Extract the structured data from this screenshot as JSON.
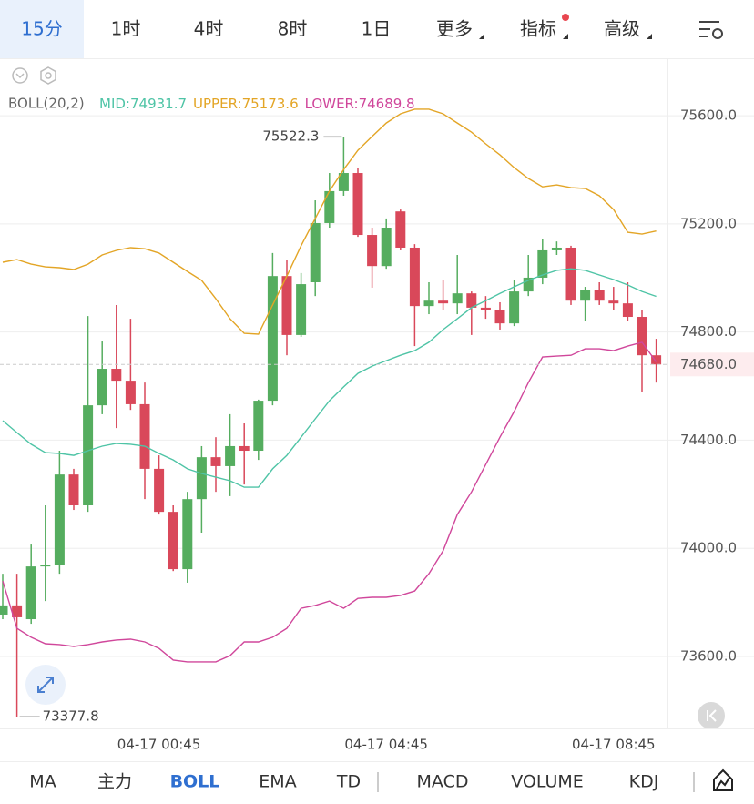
{
  "top_tabs": [
    "15分",
    "1时",
    "4时",
    "8时",
    "1日",
    "更多",
    "指标",
    "高级"
  ],
  "bottom_tabs": [
    "MA",
    "主力",
    "BOLL",
    "EMA",
    "TD",
    "MACD",
    "VOLUME",
    "KDJ"
  ],
  "chart_data": {
    "type": "candlestick",
    "indicator_label": "BOLL(20,2)",
    "categories": [
      null,
      null,
      null,
      null,
      null,
      null,
      null,
      null,
      null,
      null,
      null,
      "04-17 00:45",
      null,
      null,
      null,
      null,
      null,
      null,
      null,
      null,
      null,
      null,
      null,
      null,
      null,
      null,
      null,
      "04-17 04:45",
      null,
      null,
      null,
      null,
      null,
      null,
      null,
      null,
      null,
      null,
      null,
      null,
      null,
      null,
      null,
      "04-17 08:45",
      null,
      null,
      null
    ],
    "open": [
      73755,
      73789,
      73738,
      73933,
      73937,
      74273,
      74159,
      74529,
      74664,
      74620,
      74533,
      74294,
      74135,
      73923,
      74182,
      74337,
      74304,
      74378,
      74361,
      74546,
      75007,
      74789,
      74984,
      75203,
      75321,
      75388,
      75159,
      75044,
      75246,
      75112,
      74896,
      74916,
      74906,
      74943,
      74890,
      74883,
      74832,
      74950,
      75001,
      75102,
      75112,
      74916,
      74957,
      74916,
      74906,
      74856,
      74714
    ],
    "high": [
      73906,
      73906,
      74014,
      74159,
      74361,
      74294,
      74859,
      74765,
      74900,
      74849,
      74613,
      74344,
      74159,
      74209,
      74378,
      74411,
      74496,
      74462,
      74550,
      75092,
      75068,
      75018,
      75287,
      75388,
      75522.3,
      75405,
      75186,
      75220,
      75253,
      75125,
      74984,
      74991,
      75085,
      74950,
      74933,
      74910,
      74991,
      75085,
      75145,
      75135,
      75119,
      74967,
      74984,
      74967,
      74984,
      74883,
      74775
    ],
    "low": [
      73738,
      73377.8,
      73721,
      73805,
      73906,
      74142,
      74135,
      74496,
      74445,
      74512,
      74182,
      74125,
      73916,
      73873,
      74058,
      74209,
      74193,
      74236,
      74327,
      74529,
      74714,
      74782,
      74933,
      75186,
      75304,
      75152,
      74964,
      75034,
      75102,
      74748,
      74866,
      74883,
      74866,
      74789,
      74849,
      74809,
      74822,
      74933,
      74977,
      75085,
      74900,
      74842,
      74900,
      74883,
      74842,
      74580,
      74613
    ],
    "close": [
      73789,
      73745,
      73933,
      73940,
      74273,
      74159,
      74529,
      74664,
      74620,
      74533,
      74294,
      74135,
      73923,
      74182,
      74337,
      74304,
      74378,
      74361,
      74546,
      75007,
      74789,
      74977,
      75203,
      75321,
      75388,
      75159,
      75044,
      75186,
      75112,
      74896,
      74916,
      74906,
      74943,
      74890,
      74883,
      74832,
      74950,
      75001,
      75102,
      75112,
      74916,
      74957,
      74916,
      74906,
      74856,
      74714,
      74680
    ],
    "up_color": "#55ad5f",
    "down_color": "#d9485a",
    "series": [
      {
        "name": "MID:",
        "color": "#4fc4a6",
        "values": [
          74472,
          74428,
          74385,
          74354,
          74351,
          74344,
          74361,
          74378,
          74388,
          74385,
          74378,
          74351,
          74327,
          74294,
          74277,
          74263,
          74250,
          74226,
          74226,
          74294,
          74344,
          74411,
          74479,
          74546,
          74597,
          74647,
          74674,
          74694,
          74714,
          74731,
          74762,
          74809,
          74849,
          74890,
          74916,
          74943,
          74967,
          74991,
          75011,
          75028,
          75034,
          75028,
          75011,
          74994,
          74974,
          74950,
          74931.7
        ]
      },
      {
        "name": "UPPER:",
        "color": "#e3a526",
        "values": [
          75058,
          75068,
          75051,
          75041,
          75038,
          75031,
          75051,
          75085,
          75102,
          75112,
          75108,
          75092,
          75058,
          75024,
          74991,
          74923,
          74849,
          74795,
          74792,
          74900,
          75007,
          75119,
          75220,
          75321,
          75401,
          75472,
          75523,
          75573,
          75607,
          75624,
          75624,
          75607,
          75573,
          75539,
          75496,
          75455,
          75408,
          75368,
          75337,
          75344,
          75334,
          75331,
          75304,
          75253,
          75169,
          75162,
          75173.6
        ]
      },
      {
        "name": "LOWER:",
        "color": "#d0479b",
        "values": [
          73879,
          73704,
          73671,
          73647,
          73644,
          73637,
          73644,
          73654,
          73661,
          73664,
          73654,
          73630,
          73587,
          73580,
          73580,
          73580,
          73603,
          73654,
          73654,
          73671,
          73704,
          73778,
          73789,
          73805,
          73778,
          73815,
          73819,
          73819,
          73826,
          73842,
          73906,
          73991,
          74125,
          74209,
          74310,
          74411,
          74506,
          74613,
          74708,
          74711,
          74714,
          74738,
          74738,
          74731,
          74748,
          74762,
          74689.8
        ]
      }
    ],
    "ylim": [
      73334,
      75809
    ],
    "yticks": [
      {
        "value": 73600,
        "label": "73600.0"
      },
      {
        "value": 74000,
        "label": "74000.0"
      },
      {
        "value": 74400,
        "label": "74400.0"
      },
      {
        "value": 74800,
        "label": "74800.0"
      },
      {
        "value": 75200,
        "label": "75200.0"
      },
      {
        "value": 75600,
        "label": "75600.0"
      }
    ],
    "last_price": {
      "value": 74680,
      "label": "74680.0"
    },
    "grid": true
  }
}
